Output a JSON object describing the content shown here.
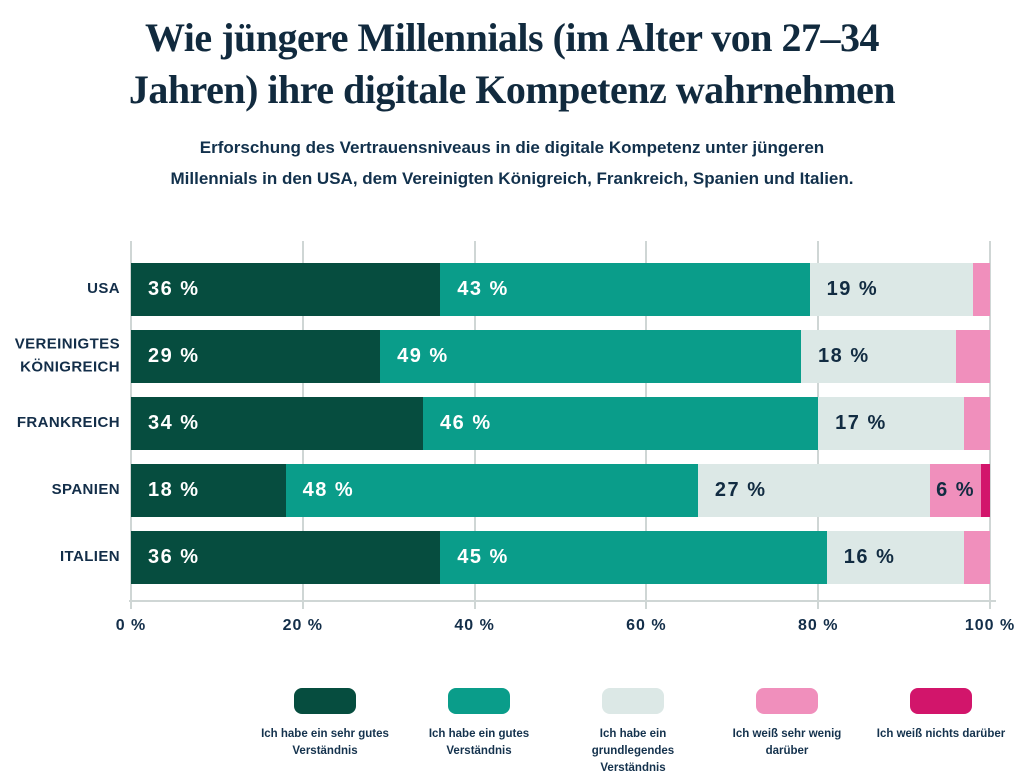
{
  "title": {
    "line1": "Wie jüngere Millennials (im Alter von 27–34",
    "line2": "Jahren) ihre digitale Kompetenz wahrnehmen"
  },
  "subtitle": {
    "line1": "Erforschung des Vertrauensniveaus in die digitale Kompetenz unter jüngeren",
    "line2": "Millennials in den USA, dem Vereinigten Königreich, Frankreich, Spanien und Italien."
  },
  "colors": {
    "background": "#ffffff",
    "text_navy": "#132e47",
    "gridline": "#cfd6d5",
    "very_good": "#064d3f",
    "good": "#0a9d8a",
    "basic": "#dce8e6",
    "very_little": "#f08fbc",
    "nothing": "#d2156b"
  },
  "chart_data": {
    "type": "bar",
    "orientation": "horizontal",
    "stacked": true,
    "grid": true,
    "xlim": [
      0,
      100
    ],
    "x_tick_values": [
      0,
      20,
      40,
      60,
      80,
      100
    ],
    "x_tick_labels": [
      "0 %",
      "20 %",
      "40 %",
      "60 %",
      "80 %",
      "100 %"
    ],
    "categories": [
      "USA",
      "VEREINIGTES KÖNIGREICH",
      "FRANKREICH",
      "SPANIEN",
      "ITALIEN"
    ],
    "series": [
      {
        "name": "Ich habe ein sehr gutes Verständnis",
        "color": "#064d3f",
        "label_color": "#ffffff",
        "values": [
          36,
          29,
          34,
          18,
          36
        ]
      },
      {
        "name": "Ich habe ein gutes Verständnis",
        "color": "#0a9d8a",
        "label_color": "#ffffff",
        "values": [
          43,
          49,
          46,
          48,
          45
        ]
      },
      {
        "name": "Ich habe ein grundlegendes Verständnis",
        "color": "#dce8e6",
        "label_color": "#122c42",
        "values": [
          19,
          18,
          17,
          27,
          16
        ]
      },
      {
        "name": "Ich weiß sehr wenig darüber",
        "color": "#f08fbc",
        "label_color": "#122c42",
        "values": [
          2,
          4,
          3,
          6,
          3
        ]
      },
      {
        "name": "Ich weiß nichts darüber",
        "color": "#d2156b",
        "label_color": "#ffffff",
        "values": [
          0,
          0,
          0,
          1,
          0
        ]
      }
    ],
    "value_label_format": "{v} %",
    "value_label_min": 6,
    "legend_position": "bottom"
  }
}
